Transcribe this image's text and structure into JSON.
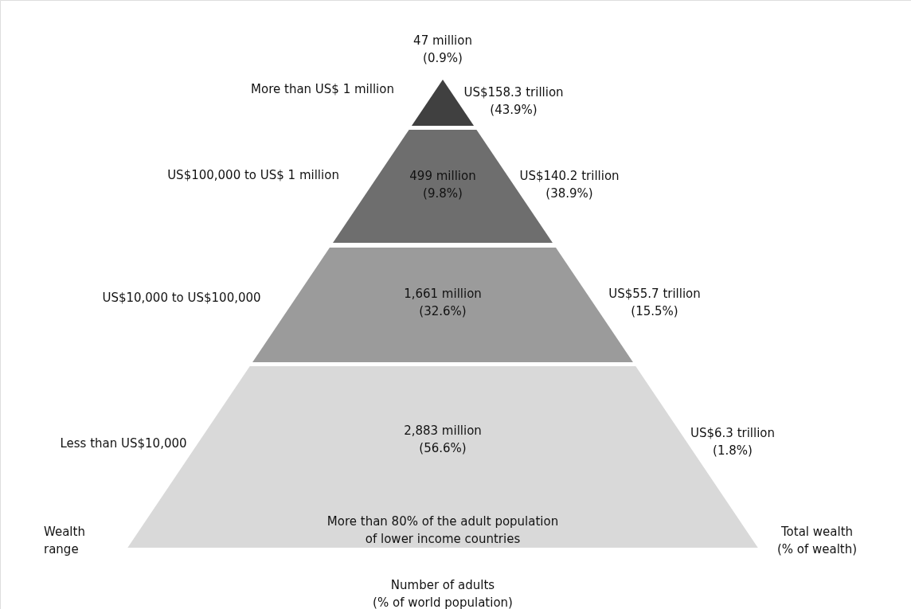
{
  "chart_data": {
    "type": "other",
    "categories": [
      "More than US$ 1 million",
      "US$100,000 to US$ 1 million",
      "US$10,000 to US$100,000",
      "Less than US$10,000"
    ],
    "series": [
      {
        "colors": [
          "#404040",
          "#6e6e6e",
          "#9b9b9b",
          "#d9d9d9"
        ],
        "values": [
          47,
          499,
          1661,
          2883
        ],
        "value_labels": [
          "47 million",
          "499 million",
          "1,661 million",
          "2,883 million"
        ]
      },
      {
        "values": [
          0.9,
          9.8,
          32.6,
          56.6
        ],
        "value_labels": [
          "(0.9%)",
          "(9.8%)",
          "(32.6%)",
          "(56.6%)"
        ]
      },
      {
        "values": [
          158.3,
          140.2,
          55.7,
          6.3
        ],
        "value_labels": [
          "US$158.3 trillion",
          "US$140.2 trillion",
          "US$55.7 trillion",
          "US$6.3 trillion"
        ]
      },
      {
        "values": [
          43.9,
          38.9,
          15.5,
          1.8
        ],
        "value_labels": [
          "(43.9%)",
          "(38.9%)",
          "(15.5%)",
          "(1.8%)"
        ]
      }
    ],
    "annotations": [
      "More than 80% of the adult population\nof lower income countries",
      "Wealth\nrange",
      "Total wealth\n(% of wealth)",
      "Number of adults\n(% of world population)"
    ]
  }
}
